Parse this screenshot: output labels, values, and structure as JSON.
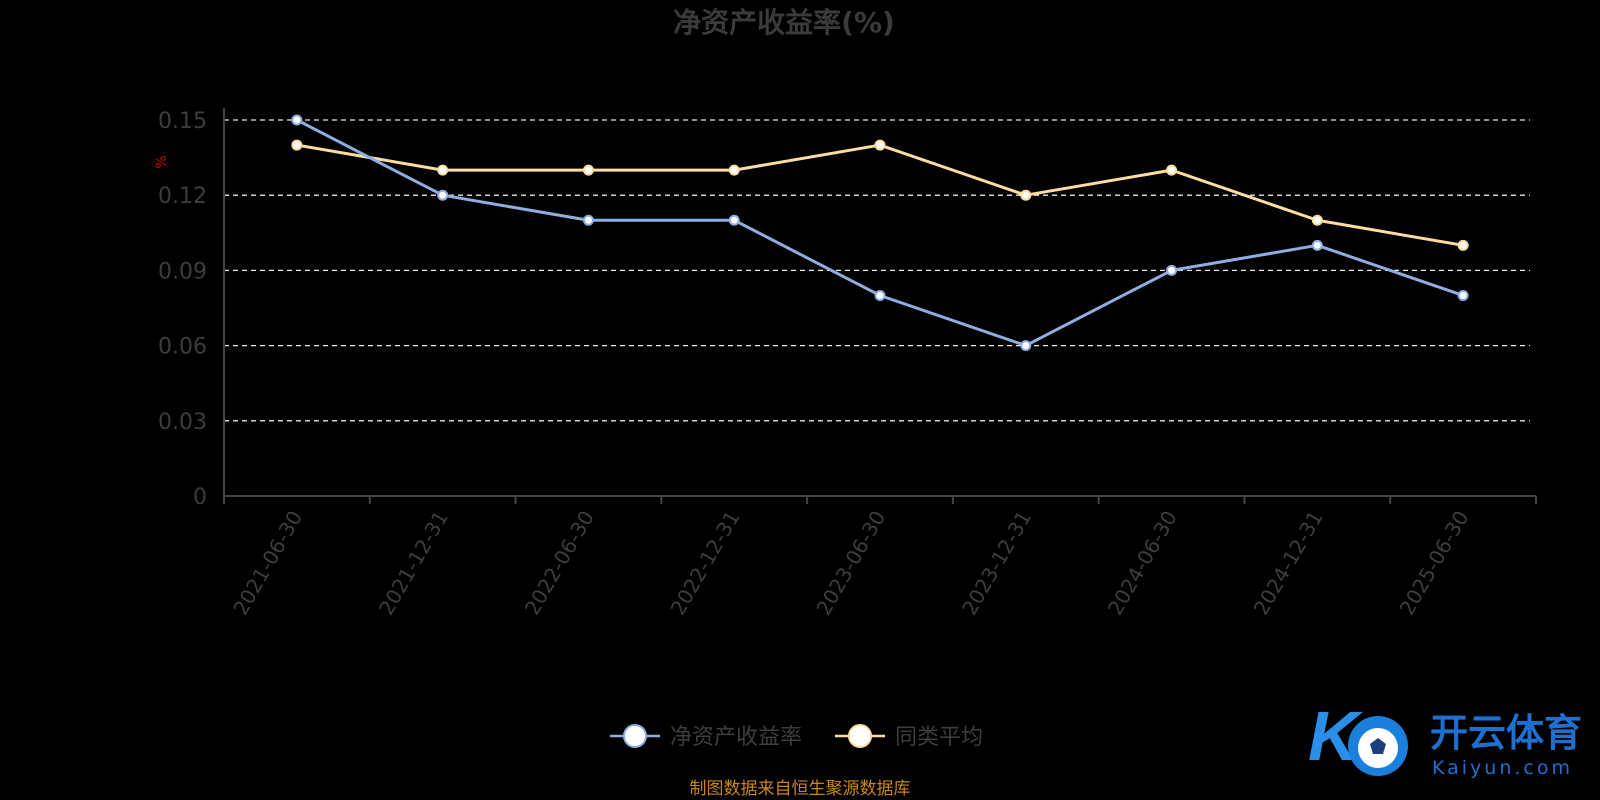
{
  "chart_data": {
    "type": "line",
    "title": "净资产收益率(%)",
    "ylabel": "%",
    "xlabel": "",
    "categories": [
      "2021-06-30",
      "2021-12-31",
      "2022-06-30",
      "2022-12-31",
      "2023-06-30",
      "2023-12-31",
      "2024-06-30",
      "2024-12-31",
      "2025-06-30"
    ],
    "series": [
      {
        "name": "净资产收益率",
        "color": "#8eaee0",
        "values": [
          0.15,
          0.12,
          0.11,
          0.11,
          0.08,
          0.06,
          0.09,
          0.1,
          0.08
        ]
      },
      {
        "name": "同类平均",
        "color": "#ffdca0",
        "values": [
          0.14,
          0.13,
          0.13,
          0.13,
          0.14,
          0.12,
          0.13,
          0.11,
          0.1
        ]
      }
    ],
    "yticks": [
      "0",
      "0.03",
      "0.06",
      "0.09",
      "0.12",
      "0.15"
    ],
    "ylim": [
      0,
      0.15
    ],
    "grid": true,
    "legend_position": "bottom-center"
  },
  "source_note": "制图数据来自恒生聚源数据库",
  "watermark": {
    "cn": "开云体育",
    "en": "Kaiyun.com"
  }
}
